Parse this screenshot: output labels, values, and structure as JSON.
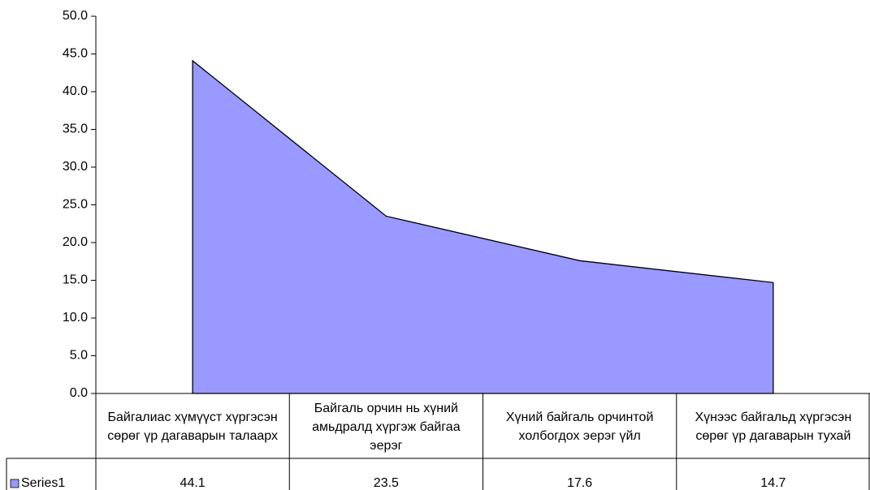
{
  "chart_data": {
    "type": "area",
    "categories": [
      "Байгалиас хүмүүст хүргэсэн сөрөг үр дагаварын талаарх",
      "Байгаль орчин нь хүний амьдралд хүргэж байгаа эерэг",
      "Хүний байгаль орчинтой холбогдох эерэг үйл",
      "Хүнээс байгальд хүргэсэн сөрөг үр дагаварын тухай"
    ],
    "series": [
      {
        "name": "Series1",
        "color": "#9999ff",
        "values": [
          44.1,
          23.5,
          17.6,
          14.7
        ]
      }
    ],
    "ylim": [
      0,
      50
    ],
    "yticks": [
      {
        "value": 0,
        "label": "0.0"
      },
      {
        "value": 5,
        "label": "5.0"
      },
      {
        "value": 10,
        "label": "10.0"
      },
      {
        "value": 15,
        "label": "15.0"
      },
      {
        "value": 20,
        "label": "20.0"
      },
      {
        "value": 25,
        "label": "25.0"
      },
      {
        "value": 30,
        "label": "30.0"
      },
      {
        "value": 35,
        "label": "35.0"
      },
      {
        "value": 40,
        "label": "40.0"
      },
      {
        "value": 45,
        "label": "45.0"
      },
      {
        "value": 50,
        "label": "50.0"
      }
    ],
    "data_table": true
  }
}
